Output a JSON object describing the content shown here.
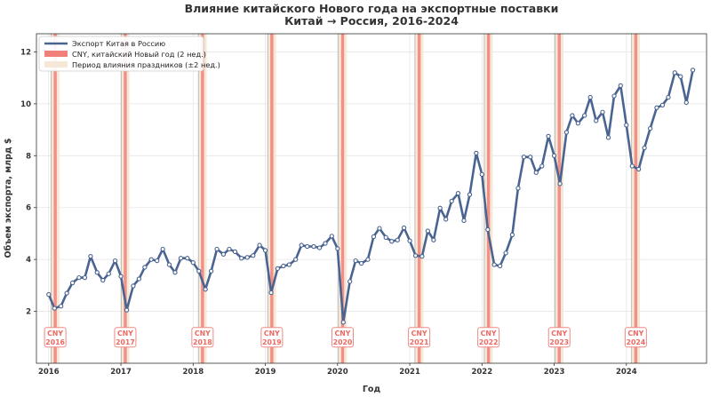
{
  "chart_data": {
    "type": "line",
    "title": "Влияние китайского Нового года на экспортные поставки",
    "subtitle": "Китай → Россия, 2016-2024",
    "xlabel": "Год",
    "ylabel": "Объем экспорта, млрд $",
    "xlim": [
      2015.83,
      2025.11
    ],
    "ylim": [
      0.0,
      12.7
    ],
    "x_ticks": [
      2016,
      2017,
      2018,
      2019,
      2020,
      2021,
      2022,
      2023,
      2024
    ],
    "y_ticks": [
      2,
      4,
      6,
      8,
      10,
      12
    ],
    "grid": true,
    "legend_position": "top-left",
    "legend": [
      {
        "label": "Экспорт Китая в Россию",
        "kind": "line"
      },
      {
        "label": "CNY, китайский Новый год (2 нед.)",
        "kind": "red-band"
      },
      {
        "label": "Период влияния праздников (±2 нед.)",
        "kind": "tan-band"
      }
    ],
    "colors": {
      "series": "#4a6491",
      "cny_band": "#f1807a",
      "impact_band": "#f6e8d6",
      "label_border": "#ef8a84",
      "label_text": "#ec6a62",
      "grid": "#e6e6e6"
    },
    "series": [
      {
        "name": "Экспорт Китая в Россию",
        "values": [
          {
            "x": 2016.0,
            "y": 2.65
          },
          {
            "x": 2016.08,
            "y": 2.12
          },
          {
            "x": 2016.17,
            "y": 2.2
          },
          {
            "x": 2016.25,
            "y": 2.7
          },
          {
            "x": 2016.33,
            "y": 3.1
          },
          {
            "x": 2016.42,
            "y": 3.3
          },
          {
            "x": 2016.5,
            "y": 3.3
          },
          {
            "x": 2016.58,
            "y": 4.12
          },
          {
            "x": 2016.67,
            "y": 3.5
          },
          {
            "x": 2016.75,
            "y": 3.2
          },
          {
            "x": 2016.83,
            "y": 3.45
          },
          {
            "x": 2016.92,
            "y": 3.95
          },
          {
            "x": 2017.0,
            "y": 3.35
          },
          {
            "x": 2017.08,
            "y": 2.05
          },
          {
            "x": 2017.17,
            "y": 2.98
          },
          {
            "x": 2017.25,
            "y": 3.25
          },
          {
            "x": 2017.33,
            "y": 3.7
          },
          {
            "x": 2017.42,
            "y": 4.0
          },
          {
            "x": 2017.5,
            "y": 3.95
          },
          {
            "x": 2017.58,
            "y": 4.4
          },
          {
            "x": 2017.67,
            "y": 3.8
          },
          {
            "x": 2017.75,
            "y": 3.5
          },
          {
            "x": 2017.83,
            "y": 4.05
          },
          {
            "x": 2017.92,
            "y": 4.05
          },
          {
            "x": 2018.0,
            "y": 3.88
          },
          {
            "x": 2018.08,
            "y": 3.55
          },
          {
            "x": 2018.17,
            "y": 2.85
          },
          {
            "x": 2018.25,
            "y": 3.55
          },
          {
            "x": 2018.33,
            "y": 4.4
          },
          {
            "x": 2018.42,
            "y": 4.2
          },
          {
            "x": 2018.5,
            "y": 4.4
          },
          {
            "x": 2018.58,
            "y": 4.3
          },
          {
            "x": 2018.67,
            "y": 4.05
          },
          {
            "x": 2018.75,
            "y": 4.08
          },
          {
            "x": 2018.83,
            "y": 4.15
          },
          {
            "x": 2018.92,
            "y": 4.55
          },
          {
            "x": 2019.0,
            "y": 4.35
          },
          {
            "x": 2019.08,
            "y": 2.72
          },
          {
            "x": 2019.17,
            "y": 3.65
          },
          {
            "x": 2019.25,
            "y": 3.75
          },
          {
            "x": 2019.33,
            "y": 3.8
          },
          {
            "x": 2019.42,
            "y": 4.0
          },
          {
            "x": 2019.5,
            "y": 4.55
          },
          {
            "x": 2019.58,
            "y": 4.5
          },
          {
            "x": 2019.67,
            "y": 4.5
          },
          {
            "x": 2019.75,
            "y": 4.45
          },
          {
            "x": 2019.83,
            "y": 4.62
          },
          {
            "x": 2019.92,
            "y": 4.9
          },
          {
            "x": 2020.0,
            "y": 4.42
          },
          {
            "x": 2020.08,
            "y": 1.58
          },
          {
            "x": 2020.17,
            "y": 3.15
          },
          {
            "x": 2020.25,
            "y": 3.95
          },
          {
            "x": 2020.33,
            "y": 3.85
          },
          {
            "x": 2020.42,
            "y": 4.0
          },
          {
            "x": 2020.5,
            "y": 4.88
          },
          {
            "x": 2020.58,
            "y": 5.2
          },
          {
            "x": 2020.67,
            "y": 4.85
          },
          {
            "x": 2020.75,
            "y": 4.7
          },
          {
            "x": 2020.83,
            "y": 4.75
          },
          {
            "x": 2020.92,
            "y": 5.22
          },
          {
            "x": 2021.0,
            "y": 4.72
          },
          {
            "x": 2021.08,
            "y": 4.15
          },
          {
            "x": 2021.17,
            "y": 4.12
          },
          {
            "x": 2021.25,
            "y": 5.1
          },
          {
            "x": 2021.33,
            "y": 4.75
          },
          {
            "x": 2021.42,
            "y": 5.98
          },
          {
            "x": 2021.5,
            "y": 5.55
          },
          {
            "x": 2021.58,
            "y": 6.25
          },
          {
            "x": 2021.67,
            "y": 6.55
          },
          {
            "x": 2021.75,
            "y": 5.5
          },
          {
            "x": 2021.83,
            "y": 6.5
          },
          {
            "x": 2021.92,
            "y": 8.1
          },
          {
            "x": 2022.0,
            "y": 7.28
          },
          {
            "x": 2022.08,
            "y": 5.15
          },
          {
            "x": 2022.17,
            "y": 3.8
          },
          {
            "x": 2022.25,
            "y": 3.75
          },
          {
            "x": 2022.33,
            "y": 4.25
          },
          {
            "x": 2022.42,
            "y": 4.95
          },
          {
            "x": 2022.5,
            "y": 6.75
          },
          {
            "x": 2022.58,
            "y": 7.95
          },
          {
            "x": 2022.67,
            "y": 7.95
          },
          {
            "x": 2022.75,
            "y": 7.35
          },
          {
            "x": 2022.83,
            "y": 7.6
          },
          {
            "x": 2022.92,
            "y": 8.75
          },
          {
            "x": 2023.0,
            "y": 8.0
          },
          {
            "x": 2023.08,
            "y": 6.92
          },
          {
            "x": 2023.17,
            "y": 8.9
          },
          {
            "x": 2023.25,
            "y": 9.55
          },
          {
            "x": 2023.33,
            "y": 9.25
          },
          {
            "x": 2023.42,
            "y": 9.55
          },
          {
            "x": 2023.5,
            "y": 10.25
          },
          {
            "x": 2023.58,
            "y": 9.35
          },
          {
            "x": 2023.67,
            "y": 9.68
          },
          {
            "x": 2023.75,
            "y": 8.7
          },
          {
            "x": 2023.83,
            "y": 10.3
          },
          {
            "x": 2023.92,
            "y": 10.7
          },
          {
            "x": 2024.0,
            "y": 9.18
          },
          {
            "x": 2024.08,
            "y": 7.6
          },
          {
            "x": 2024.17,
            "y": 7.48
          },
          {
            "x": 2024.25,
            "y": 8.3
          },
          {
            "x": 2024.33,
            "y": 9.05
          },
          {
            "x": 2024.42,
            "y": 9.85
          },
          {
            "x": 2024.5,
            "y": 9.95
          },
          {
            "x": 2024.58,
            "y": 10.25
          },
          {
            "x": 2024.67,
            "y": 11.2
          },
          {
            "x": 2024.75,
            "y": 11.05
          },
          {
            "x": 2024.83,
            "y": 10.05
          },
          {
            "x": 2024.92,
            "y": 11.3
          }
        ]
      }
    ],
    "cny_events": [
      {
        "year": 2016,
        "x": 2016.09,
        "label": "CNY\n2016"
      },
      {
        "year": 2017,
        "x": 2017.06,
        "label": "CNY\n2017"
      },
      {
        "year": 2018,
        "x": 2018.13,
        "label": "CNY\n2018"
      },
      {
        "year": 2019,
        "x": 2019.09,
        "label": "CNY\n2019"
      },
      {
        "year": 2020,
        "x": 2020.07,
        "label": "CNY\n2020"
      },
      {
        "year": 2021,
        "x": 2021.13,
        "label": "CNY\n2021"
      },
      {
        "year": 2022,
        "x": 2022.09,
        "label": "CNY\n2022"
      },
      {
        "year": 2023,
        "x": 2023.07,
        "label": "CNY\n2023"
      },
      {
        "year": 2024,
        "x": 2024.13,
        "label": "CNY\n2024"
      }
    ],
    "cny_half_width_years": 0.021,
    "impact_half_width_years": 0.058,
    "cny_label_y": 1.0
  }
}
